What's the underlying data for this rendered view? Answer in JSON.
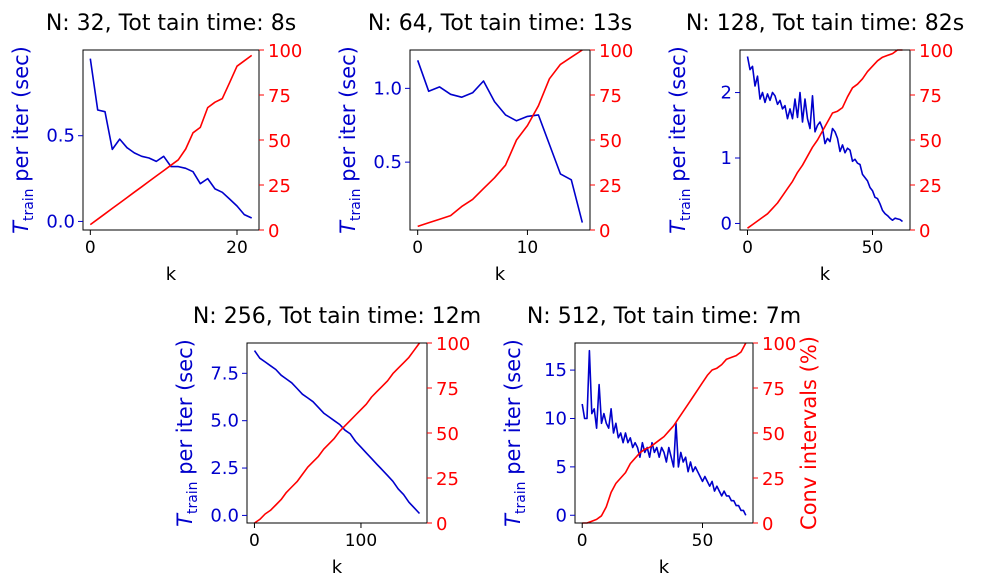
{
  "figure": {
    "colors": {
      "time": "#0000cc",
      "conv": "#ff0000",
      "text": "#000000"
    }
  },
  "chart_data": [
    {
      "type": "line",
      "title": "N: 32, Tot tain time: 8s",
      "xlabel": "k",
      "ylabel_left": "T_train per iter (sec)",
      "ylabel_right": "",
      "xlim": [
        -1,
        23
      ],
      "ylim_left": [
        -0.05,
        1.0
      ],
      "ylim_right": [
        0,
        100
      ],
      "xticks": [
        0,
        20
      ],
      "yticks_left": [
        0.0,
        0.5
      ],
      "yticks_left_labels": [
        "0.0",
        "0.5"
      ],
      "yticks_right": [
        0,
        25,
        50,
        75,
        100
      ],
      "series": [
        {
          "axis": "left",
          "color": "#0000cc",
          "x": [
            0,
            1,
            2,
            3,
            4,
            5,
            6,
            7,
            8,
            9,
            10,
            11,
            12,
            13,
            14,
            15,
            16,
            17,
            18,
            19,
            20,
            21,
            22
          ],
          "y": [
            0.95,
            0.65,
            0.64,
            0.42,
            0.48,
            0.43,
            0.4,
            0.38,
            0.37,
            0.35,
            0.38,
            0.32,
            0.32,
            0.31,
            0.29,
            0.22,
            0.25,
            0.19,
            0.17,
            0.13,
            0.09,
            0.04,
            0.02
          ]
        },
        {
          "axis": "right",
          "color": "#ff0000",
          "x": [
            0,
            1,
            2,
            3,
            4,
            5,
            6,
            7,
            8,
            9,
            10,
            11,
            12,
            13,
            14,
            15,
            16,
            17,
            18,
            19,
            20,
            21,
            22
          ],
          "y": [
            3,
            6,
            9,
            12,
            15,
            18,
            21,
            24,
            27,
            30,
            33,
            36,
            39,
            45,
            54,
            57,
            68,
            71,
            73,
            82,
            91,
            94,
            97
          ]
        }
      ]
    },
    {
      "type": "line",
      "title": "N: 64, Tot tain time: 13s",
      "xlabel": "k",
      "ylabel_left": "T_train per iter (sec)",
      "ylabel_right": "",
      "xlim": [
        -0.7,
        15.7
      ],
      "ylim_left": [
        0.04,
        1.26
      ],
      "ylim_right": [
        0,
        100
      ],
      "xticks": [
        0,
        10
      ],
      "yticks_left": [
        0.5,
        1.0
      ],
      "yticks_left_labels": [
        "0.5",
        "1.0"
      ],
      "yticks_right": [
        0,
        25,
        50,
        75,
        100
      ],
      "series": [
        {
          "axis": "left",
          "color": "#0000cc",
          "x": [
            0,
            1,
            2,
            3,
            4,
            5,
            6,
            7,
            8,
            9,
            10,
            11,
            12,
            13,
            14,
            15
          ],
          "y": [
            1.19,
            0.98,
            1.01,
            0.96,
            0.94,
            0.97,
            1.05,
            0.91,
            0.82,
            0.78,
            0.81,
            0.82,
            0.62,
            0.42,
            0.38,
            0.09
          ]
        },
        {
          "axis": "right",
          "color": "#ff0000",
          "x": [
            0,
            1,
            2,
            3,
            4,
            5,
            6,
            7,
            8,
            9,
            10,
            11,
            12,
            13,
            14,
            15
          ],
          "y": [
            2,
            4,
            6,
            8,
            13,
            17,
            23,
            29,
            36,
            50,
            58,
            69,
            84,
            92,
            96,
            100
          ]
        }
      ]
    },
    {
      "type": "line",
      "title": "N: 128, Tot tain time: 82s",
      "xlabel": "k",
      "ylabel_left": "T_train per iter (sec)",
      "ylabel_right": "",
      "xlim": [
        -3,
        65
      ],
      "ylim_left": [
        -0.1,
        2.65
      ],
      "ylim_right": [
        0,
        100
      ],
      "xticks": [
        0,
        50
      ],
      "yticks_left": [
        0,
        1,
        2
      ],
      "yticks_left_labels": [
        "0",
        "1",
        "2"
      ],
      "yticks_right": [
        0,
        25,
        50,
        75,
        100
      ],
      "series": [
        {
          "axis": "left",
          "color": "#0000cc",
          "x": [
            0,
            1,
            2,
            3,
            4,
            5,
            6,
            7,
            8,
            9,
            10,
            11,
            12,
            13,
            14,
            15,
            16,
            17,
            18,
            19,
            20,
            21,
            22,
            23,
            24,
            25,
            26,
            27,
            28,
            29,
            30,
            31,
            32,
            33,
            34,
            35,
            36,
            37,
            38,
            39,
            40,
            41,
            42,
            43,
            44,
            45,
            46,
            47,
            48,
            49,
            50,
            51,
            52,
            53,
            54,
            55,
            56,
            57,
            58,
            59,
            60,
            61,
            62
          ],
          "y": [
            2.55,
            2.35,
            2.4,
            2.1,
            2.25,
            1.9,
            2.0,
            1.85,
            1.98,
            1.88,
            2.0,
            1.95,
            1.82,
            1.88,
            1.75,
            1.8,
            1.6,
            1.75,
            1.6,
            1.9,
            1.62,
            2.0,
            1.55,
            1.9,
            1.6,
            1.45,
            1.95,
            1.4,
            1.5,
            1.55,
            1.45,
            1.22,
            1.3,
            1.25,
            1.45,
            1.4,
            1.3,
            1.1,
            1.2,
            1.08,
            1.15,
            1.12,
            0.95,
            0.98,
            0.92,
            0.9,
            0.75,
            0.7,
            0.65,
            0.55,
            0.5,
            0.4,
            0.38,
            0.3,
            0.2,
            0.15,
            0.12,
            0.08,
            0.05,
            0.08,
            0.07,
            0.06,
            0.03
          ]
        },
        {
          "axis": "right",
          "color": "#ff0000",
          "x": [
            0,
            2,
            4,
            6,
            8,
            10,
            12,
            14,
            16,
            18,
            20,
            22,
            24,
            26,
            28,
            30,
            32,
            34,
            36,
            38,
            40,
            42,
            44,
            46,
            48,
            50,
            52,
            54,
            56,
            58,
            60,
            62
          ],
          "y": [
            1,
            3,
            5,
            7,
            9,
            12,
            15,
            19,
            23,
            27,
            32,
            36,
            41,
            46,
            50,
            55,
            60,
            65,
            66,
            68,
            74,
            79,
            81,
            84,
            88,
            91,
            94,
            96,
            97,
            98,
            100,
            100
          ]
        }
      ]
    },
    {
      "type": "line",
      "title": "N: 256, Tot tain time: 12m",
      "xlabel": "k",
      "ylabel_left": "T_train per iter (sec)",
      "ylabel_right": "",
      "xlim": [
        -7,
        162
      ],
      "ylim_left": [
        -0.4,
        9.1
      ],
      "ylim_right": [
        0,
        100
      ],
      "xticks": [
        0,
        100
      ],
      "yticks_left": [
        0.0,
        2.5,
        5.0,
        7.5
      ],
      "yticks_left_labels": [
        "0.0",
        "2.5",
        "5.0",
        "7.5"
      ],
      "yticks_right": [
        0,
        25,
        50,
        75,
        100
      ],
      "series": [
        {
          "axis": "left",
          "color": "#0000cc",
          "x": [
            0,
            5,
            10,
            15,
            20,
            25,
            30,
            35,
            40,
            45,
            50,
            55,
            60,
            65,
            70,
            75,
            80,
            85,
            90,
            95,
            100,
            105,
            110,
            115,
            120,
            125,
            130,
            135,
            140,
            145,
            150,
            155
          ],
          "y": [
            8.7,
            8.3,
            8.1,
            7.9,
            7.7,
            7.4,
            7.2,
            7.0,
            6.7,
            6.4,
            6.2,
            6.0,
            5.7,
            5.4,
            5.2,
            5.0,
            4.8,
            4.5,
            4.3,
            3.9,
            3.6,
            3.3,
            3.0,
            2.7,
            2.4,
            2.1,
            1.8,
            1.4,
            1.1,
            0.7,
            0.4,
            0.1
          ]
        },
        {
          "axis": "right",
          "color": "#ff0000",
          "x": [
            0,
            5,
            10,
            15,
            20,
            25,
            30,
            35,
            40,
            45,
            50,
            55,
            60,
            65,
            70,
            75,
            80,
            85,
            90,
            95,
            100,
            105,
            110,
            115,
            120,
            125,
            130,
            135,
            140,
            145,
            150,
            155
          ],
          "y": [
            0,
            2,
            5,
            7,
            10,
            13,
            17,
            20,
            23,
            27,
            31,
            34,
            37,
            41,
            44,
            47,
            51,
            54,
            57,
            60,
            63,
            66,
            70,
            73,
            76,
            79,
            83,
            86,
            89,
            92,
            96,
            100
          ]
        }
      ]
    },
    {
      "type": "line",
      "title": "N: 512, Tot tain time: 7m",
      "xlabel": "k",
      "ylabel_left": "T_train per iter (sec)",
      "ylabel_right": "Conv intervals (%)",
      "xlim": [
        -3,
        71
      ],
      "ylim_left": [
        -0.8,
        17.8
      ],
      "ylim_right": [
        0,
        100
      ],
      "xticks": [
        0,
        50
      ],
      "yticks_left": [
        0,
        5,
        10,
        15
      ],
      "yticks_left_labels": [
        "0",
        "5",
        "10",
        "15"
      ],
      "yticks_right": [
        0,
        25,
        50,
        75,
        100
      ],
      "series": [
        {
          "axis": "left",
          "color": "#0000cc",
          "x": [
            0,
            1,
            2,
            3,
            4,
            5,
            6,
            7,
            8,
            9,
            10,
            11,
            12,
            13,
            14,
            15,
            16,
            17,
            18,
            19,
            20,
            21,
            22,
            23,
            24,
            25,
            26,
            27,
            28,
            29,
            30,
            31,
            32,
            33,
            34,
            35,
            36,
            37,
            38,
            39,
            40,
            41,
            42,
            43,
            44,
            45,
            46,
            47,
            48,
            49,
            50,
            51,
            52,
            53,
            54,
            55,
            56,
            57,
            58,
            59,
            60,
            61,
            62,
            63,
            64,
            65,
            66,
            67,
            68
          ],
          "y": [
            11.5,
            10,
            10,
            17,
            10.5,
            11,
            9,
            13.5,
            9.5,
            10.5,
            9.5,
            9,
            11,
            8.5,
            9.5,
            8,
            8.5,
            7.5,
            8.5,
            7.5,
            8,
            7,
            7.5,
            7,
            6,
            7.5,
            6.5,
            7,
            6,
            7.5,
            6.5,
            7,
            6,
            7,
            6.5,
            5.5,
            7,
            6,
            5,
            9.5,
            5,
            6.5,
            5.5,
            6,
            4.5,
            5.5,
            4.5,
            5,
            4.5,
            4,
            3.5,
            4,
            3.5,
            3,
            3.5,
            2.5,
            3,
            2.5,
            2,
            2.5,
            2,
            2,
            1.5,
            1.5,
            1,
            1,
            0.5,
            0.5,
            0
          ]
        },
        {
          "axis": "right",
          "color": "#ff0000",
          "x": [
            0,
            2,
            4,
            6,
            8,
            10,
            12,
            14,
            16,
            18,
            20,
            22,
            24,
            26,
            28,
            30,
            32,
            34,
            36,
            38,
            40,
            42,
            44,
            46,
            48,
            50,
            52,
            54,
            56,
            58,
            60,
            62,
            64,
            66,
            68
          ],
          "y": [
            0,
            0,
            1,
            2,
            4,
            9,
            17,
            22,
            25,
            28,
            33,
            36,
            39,
            41,
            42,
            44,
            46,
            48,
            51,
            54,
            58,
            62,
            66,
            70,
            74,
            78,
            82,
            85,
            86,
            88,
            91,
            92,
            93,
            95,
            100
          ]
        }
      ]
    }
  ]
}
